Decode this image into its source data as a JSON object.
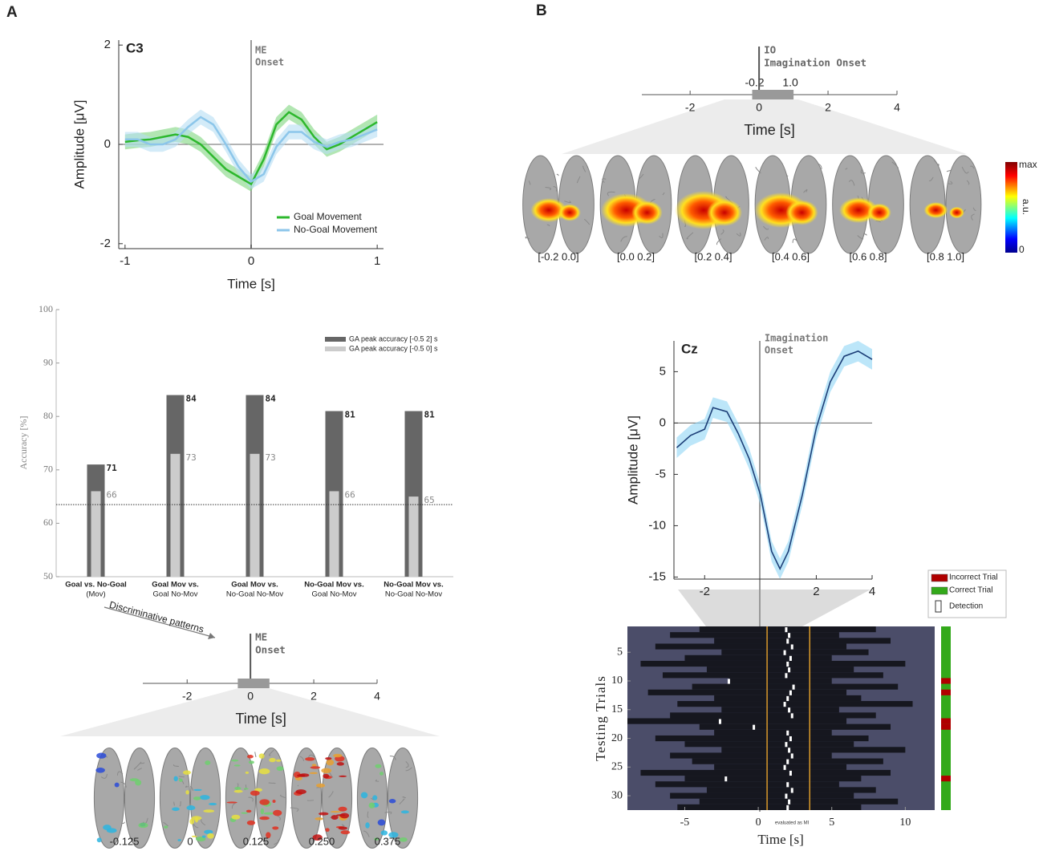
{
  "panel_labels": [
    "A",
    "B"
  ],
  "chart_data": [
    {
      "type": "line",
      "title": "C3",
      "annotation": [
        "ME",
        "Onset"
      ],
      "xlabel": "Time [s]",
      "ylabel": "Amplitude [μV]",
      "x": [
        -1,
        -0.9,
        -0.8,
        -0.7,
        -0.6,
        -0.5,
        -0.4,
        -0.3,
        -0.2,
        -0.1,
        0,
        0.1,
        0.2,
        0.3,
        0.4,
        0.5,
        0.6,
        0.7,
        0.8,
        0.9,
        1
      ],
      "series": [
        {
          "name": "Goal Movement",
          "color": "#2db82d",
          "band_color": "#7fd67f",
          "band": 0.15,
          "values": [
            0.05,
            0.08,
            0.1,
            0.15,
            0.2,
            0.15,
            0,
            -0.25,
            -0.5,
            -0.65,
            -0.8,
            -0.3,
            0.4,
            0.65,
            0.5,
            0.15,
            -0.1,
            0,
            0.15,
            0.3,
            0.45
          ]
        },
        {
          "name": "No-Goal Movement",
          "color": "#8cc6ea",
          "band_color": "#b5ddf3",
          "band": 0.15,
          "values": [
            0.1,
            0.1,
            0,
            0,
            0.1,
            0.35,
            0.55,
            0.4,
            0,
            -0.45,
            -0.75,
            -0.6,
            -0.05,
            0.25,
            0.25,
            0.05,
            -0.05,
            0.05,
            0.1,
            0.2,
            0.3
          ]
        }
      ],
      "xlim": [
        -1.05,
        1.05
      ],
      "ylim": [
        -2.1,
        2.1
      ],
      "xticks": [
        -1,
        0,
        1
      ],
      "yticks": [
        -2,
        0,
        2
      ]
    },
    {
      "type": "bar",
      "ylabel": "Accuracy [%]",
      "categories": [
        [
          "Goal vs. No-Goal",
          "(Mov)"
        ],
        [
          "Goal Mov vs.",
          "Goal No-Mov"
        ],
        [
          "Goal Mov vs.",
          "No-Goal No-Mov"
        ],
        [
          "No-Goal Mov vs.",
          "Goal No-Mov"
        ],
        [
          "No-Goal Mov vs.",
          "No-Goal No-Mov"
        ]
      ],
      "series": [
        {
          "name": "GA peak accuracy [-0.5 2] s",
          "color": "#666666",
          "values": [
            71,
            84,
            84,
            81,
            81
          ]
        },
        {
          "name": "GA peak accuracy [-0.5 0] s",
          "color": "#cccccc",
          "values": [
            66,
            73,
            73,
            66,
            65
          ]
        }
      ],
      "chance_level": 63.5,
      "ylim": [
        50,
        100
      ],
      "yticks": [
        50,
        60,
        70,
        80,
        90,
        100
      ]
    },
    {
      "type": "line",
      "title": "Cz",
      "annotation": [
        "Imagination",
        "Onset"
      ],
      "ylabel": "Amplitude [μV]",
      "x": [
        -3,
        -2.5,
        -2,
        -1.7,
        -1.2,
        -0.8,
        -0.4,
        0,
        0.4,
        0.7,
        1,
        1.5,
        2,
        2.5,
        3,
        3.5,
        4
      ],
      "series": [
        {
          "name": "Cz",
          "color": "#1d3f78",
          "band_color": "#8fd6f5",
          "band": 1,
          "values": [
            -2.4,
            -1.2,
            -0.6,
            1.5,
            1.1,
            -1,
            -3.5,
            -7,
            -12.5,
            -14.2,
            -12.5,
            -7,
            -0.5,
            4,
            6.5,
            7,
            6.2
          ]
        }
      ],
      "xlim": [
        -3.1,
        4
      ],
      "ylim": [
        -15.2,
        8
      ],
      "xticks": [
        -2,
        2,
        4
      ],
      "yticks": [
        -15,
        -10,
        -5,
        0,
        5
      ]
    },
    {
      "type": "timeline",
      "annotation": [
        "ME",
        "Onset"
      ],
      "xlabel": "Time [s]",
      "window": [
        -0.4,
        0.6
      ],
      "xlim": [
        -3.4,
        4
      ],
      "xticks": [
        -2,
        0,
        2,
        4
      ]
    },
    {
      "type": "timeline",
      "annotation": [
        "IO",
        "Imagination Onset"
      ],
      "xlabel": "Time [s]",
      "window": [
        -0.2,
        {
          "value": 1.0,
          "label": "1.0"
        }
      ],
      "xlim": [
        -3.4,
        4
      ],
      "xticks": [
        -2,
        0,
        2,
        4
      ]
    },
    {
      "type": "raster",
      "xlabel": "Time [s]",
      "ylabel": "Testing Trials",
      "annotation": "evaluated as MI",
      "starts": [
        -4,
        -6,
        -3,
        -7,
        -2.5,
        -5,
        -8,
        -3.5,
        -6.5,
        -2,
        -4.5,
        -7.5,
        -3,
        -5.5,
        -2.5,
        -6,
        -8.9,
        -4,
        -3,
        -7,
        -5,
        -2.5,
        -6,
        -4.5,
        -3,
        -8,
        -5,
        -7,
        -3.5,
        -6,
        -4,
        -5.5
      ],
      "ends": [
        8,
        5.5,
        9,
        6,
        7.5,
        5,
        10,
        6.5,
        8.5,
        5,
        9.5,
        6,
        7,
        10.5,
        5.5,
        8,
        6,
        9,
        5,
        7.5,
        6.5,
        10,
        5,
        8.5,
        6,
        9,
        7,
        5.5,
        8,
        6.5,
        9.5,
        7
      ],
      "detections": [
        1.9,
        2.1,
        2.0,
        2.3,
        1.8,
        2.2,
        2.0,
        2.1,
        1.9,
        -2.0,
        2.4,
        2.2,
        2.0,
        1.8,
        2.1,
        2.3,
        -2.6,
        -0.3,
        2.0,
        2.2,
        1.9,
        2.1,
        2.3,
        2.0,
        1.8,
        2.2,
        -2.2,
        2.0,
        2.3,
        1.9,
        2.1,
        2.0
      ],
      "incorrect_trials": [
        10,
        12,
        17,
        18,
        27
      ],
      "evaluation_window": [
        0.6,
        3.5
      ],
      "legend": [
        {
          "name": "Incorrect Trial",
          "color": "#b00000"
        },
        {
          "name": "Correct Trial",
          "color": "#33a91a"
        },
        {
          "name": "Detection",
          "color": "#ffffff"
        }
      ],
      "xlim": [
        -8.9,
        12
      ],
      "ylim": [
        0.5,
        32.5
      ],
      "xticks": [
        -5,
        0,
        5,
        10
      ],
      "yticks": [
        5,
        10,
        15,
        20,
        25,
        30
      ]
    }
  ],
  "brain_maps_a": {
    "caption": "Discriminative patterns",
    "labels": [
      "-0.125",
      "0",
      "0.125",
      "0.250",
      "0.375"
    ]
  },
  "brain_maps_b": {
    "labels": [
      "[-0.2 0.0]",
      "[0.0 0.2]",
      "[0.2 0.4]",
      "[0.4 0.6]",
      "[0.6 0.8]",
      "[0.8 1.0]"
    ],
    "colorbar": [
      "max",
      "a.u.",
      "0"
    ]
  }
}
